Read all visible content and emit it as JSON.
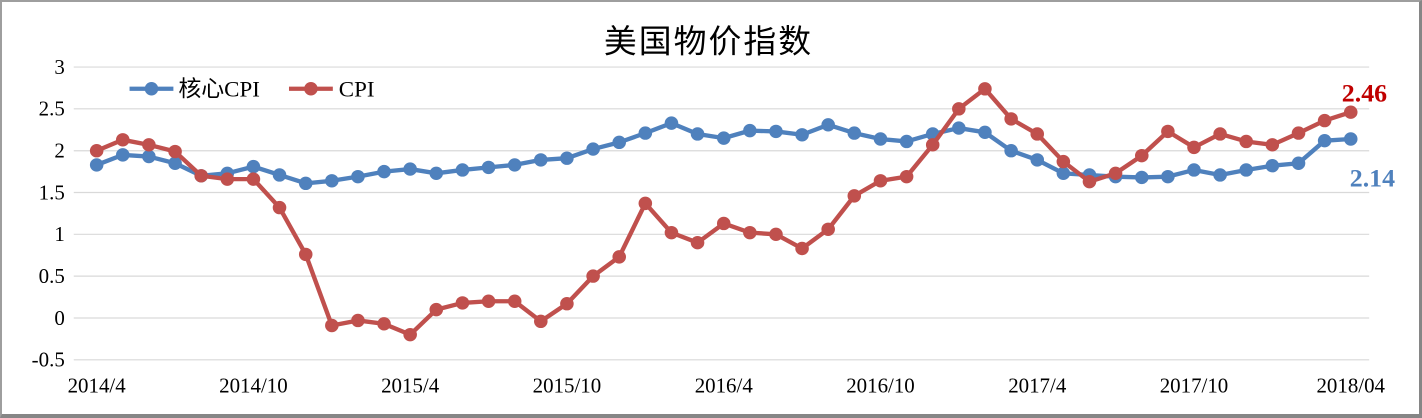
{
  "chart_data": {
    "type": "line",
    "title": "美国物价指数",
    "grid": true,
    "grid_color": "#D9D9D9",
    "legend_position": "top-left-inside",
    "ylim": [
      -0.5,
      3
    ],
    "y_ticks": [
      "3",
      "2.5",
      "2",
      "1.5",
      "1",
      "0.5",
      "0",
      "-0.5"
    ],
    "x_ticks": [
      {
        "label": "2014/4",
        "month_index": 0
      },
      {
        "label": "2014/10",
        "month_index": 6
      },
      {
        "label": "2015/4",
        "month_index": 12
      },
      {
        "label": "2015/10",
        "month_index": 18
      },
      {
        "label": "2016/4",
        "month_index": 24
      },
      {
        "label": "2016/10",
        "month_index": 30
      },
      {
        "label": "2017/4",
        "month_index": 36
      },
      {
        "label": "2017/10",
        "month_index": 42
      },
      {
        "label": "2018/04",
        "month_index": 48
      }
    ],
    "series": [
      {
        "name": "核心CPI",
        "color": "#4F81BD",
        "end_label": {
          "text": "2.14",
          "color": "#4F81BD"
        },
        "values": [
          1.83,
          1.95,
          1.93,
          1.85,
          1.7,
          1.73,
          1.81,
          1.71,
          1.61,
          1.64,
          1.69,
          1.75,
          1.78,
          1.73,
          1.77,
          1.8,
          1.83,
          1.89,
          1.91,
          2.02,
          2.1,
          2.21,
          2.33,
          2.2,
          2.15,
          2.24,
          2.23,
          2.19,
          2.31,
          2.21,
          2.14,
          2.11,
          2.2,
          2.27,
          2.22,
          2.0,
          1.89,
          1.73,
          1.71,
          1.69,
          1.68,
          1.69,
          1.77,
          1.71,
          1.77,
          1.82,
          1.85,
          2.12,
          2.14
        ]
      },
      {
        "name": "CPI",
        "color": "#C0504D",
        "end_label": {
          "text": "2.46",
          "color": "#C00000"
        },
        "values": [
          2.0,
          2.13,
          2.07,
          1.99,
          1.7,
          1.66,
          1.66,
          1.32,
          0.76,
          -0.09,
          -0.03,
          -0.07,
          -0.2,
          0.1,
          0.18,
          0.2,
          0.2,
          -0.04,
          0.17,
          0.5,
          0.73,
          1.37,
          1.02,
          0.9,
          1.13,
          1.02,
          1.0,
          0.83,
          1.06,
          1.46,
          1.64,
          1.69,
          2.07,
          2.5,
          2.74,
          2.38,
          2.2,
          1.87,
          1.63,
          1.73,
          1.94,
          2.23,
          2.04,
          2.2,
          2.11,
          2.07,
          2.21,
          2.36,
          2.46
        ]
      }
    ]
  }
}
